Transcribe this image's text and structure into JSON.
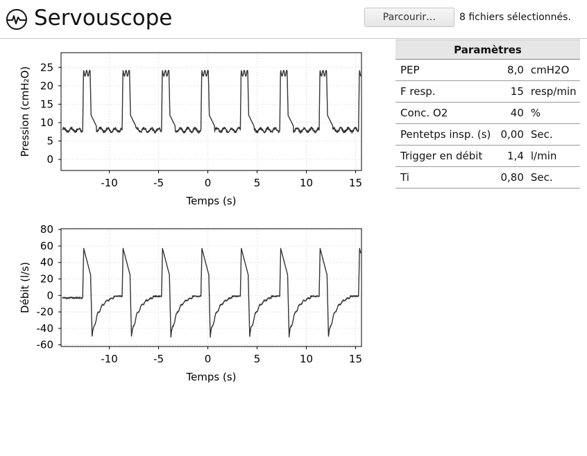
{
  "app": {
    "title": "Servouscope",
    "logo_icon": "waveform-icon"
  },
  "file_picker": {
    "button_label": "Parcourir…",
    "status": "8 fichiers sélectionnés."
  },
  "params": {
    "header": "Paramètres",
    "rows": [
      {
        "name": "PEP",
        "value": "8,0",
        "unit": "cmH2O"
      },
      {
        "name": "F resp.",
        "value": "15",
        "unit": "resp/min"
      },
      {
        "name": "Conc. O2",
        "value": "40",
        "unit": "%"
      },
      {
        "name": "Pentetps insp. (s)",
        "value": "0,00",
        "unit": "Sec."
      },
      {
        "name": "Trigger en débit",
        "value": "1,4",
        "unit": "l/min"
      },
      {
        "name": "Ti",
        "value": "0,80",
        "unit": "Sec."
      }
    ]
  },
  "chart_data": [
    {
      "type": "line",
      "id": "pressure",
      "xlabel": "Temps (s)",
      "ylabel": "Pression (cmH₂O)",
      "xlim": [
        -14.9,
        15.6
      ],
      "ylim": [
        -3,
        29
      ],
      "xticks": [
        -10,
        -5,
        0,
        5,
        10,
        15
      ],
      "yticks": [
        0,
        5,
        10,
        15,
        20,
        25
      ],
      "grid": true,
      "color": "#333333",
      "waveform": "pressure",
      "breath_onsets": [
        -12.7,
        -8.7,
        -4.7,
        -0.7,
        3.3,
        7.3,
        11.3,
        15.3
      ],
      "peep": 8,
      "peak": 24,
      "ti": 0.8
    },
    {
      "type": "line",
      "id": "flow",
      "xlabel": "Temps (s)",
      "ylabel": "Débit (l/s)",
      "xlim": [
        -14.9,
        15.6
      ],
      "ylim": [
        -62,
        81
      ],
      "xticks": [
        -10,
        -5,
        0,
        5,
        10,
        15
      ],
      "yticks": [
        -60,
        -40,
        -20,
        0,
        20,
        40,
        60,
        80
      ],
      "grid": true,
      "color": "#333333",
      "waveform": "flow",
      "breath_onsets": [
        -12.7,
        -8.7,
        -4.7,
        -0.7,
        3.3,
        7.3,
        11.3,
        15.3
      ],
      "peak_insp": 57,
      "peak_exp": -50,
      "ti": 0.8
    }
  ]
}
